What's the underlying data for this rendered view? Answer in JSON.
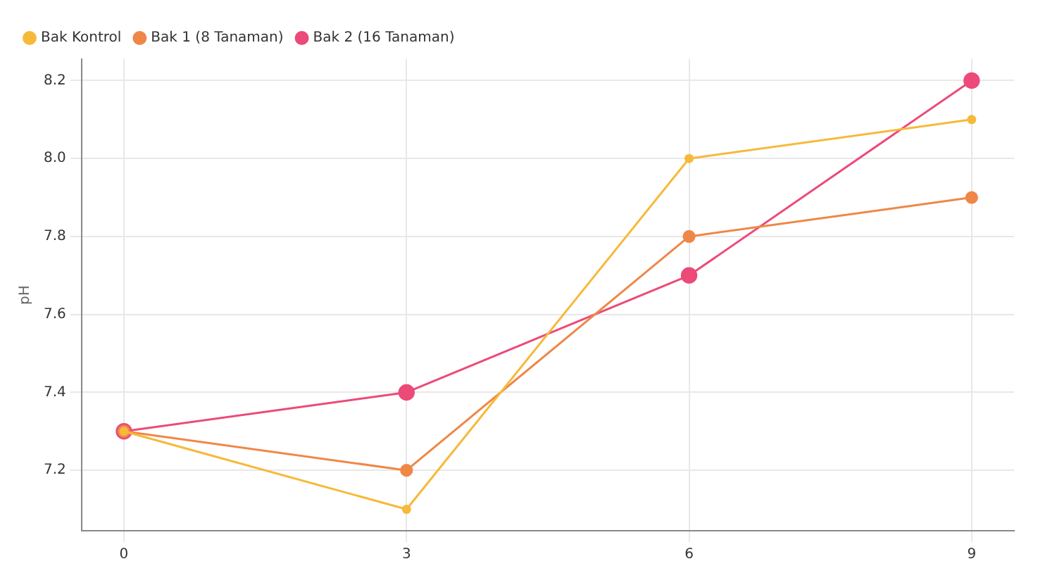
{
  "chart_data": {
    "type": "line",
    "ylabel": "pH",
    "x": [
      0,
      3,
      6,
      9
    ],
    "xlim": [
      -0.45,
      9.45
    ],
    "xticks": [
      0,
      3,
      6,
      9
    ],
    "ylim": [
      7.045,
      8.255
    ],
    "yticks": [
      {
        "value": 7.2,
        "label": "7.2"
      },
      {
        "value": 7.4,
        "label": "7.4"
      },
      {
        "value": 7.6,
        "label": "7.6"
      },
      {
        "value": 7.8,
        "label": "7.8"
      },
      {
        "value": 8.0,
        "label": "8.0"
      },
      {
        "value": 8.2,
        "label": "8.2"
      }
    ],
    "grid": true,
    "legend": "top left",
    "marker": "circle",
    "line_style": "solid",
    "series": [
      {
        "name": "Bak Kontrol",
        "color": "#f7b93a",
        "values": [
          7.3,
          7.1,
          8.0,
          8.1
        ]
      },
      {
        "name": "Bak 1 (8 Tanaman)",
        "color": "#ef8748",
        "values": [
          7.3,
          7.2,
          7.8,
          7.9
        ]
      },
      {
        "name": "Bak 2 (16 Tanaman)",
        "color": "#ec4a78",
        "values": [
          7.3,
          7.4,
          7.7,
          8.2
        ]
      }
    ]
  }
}
